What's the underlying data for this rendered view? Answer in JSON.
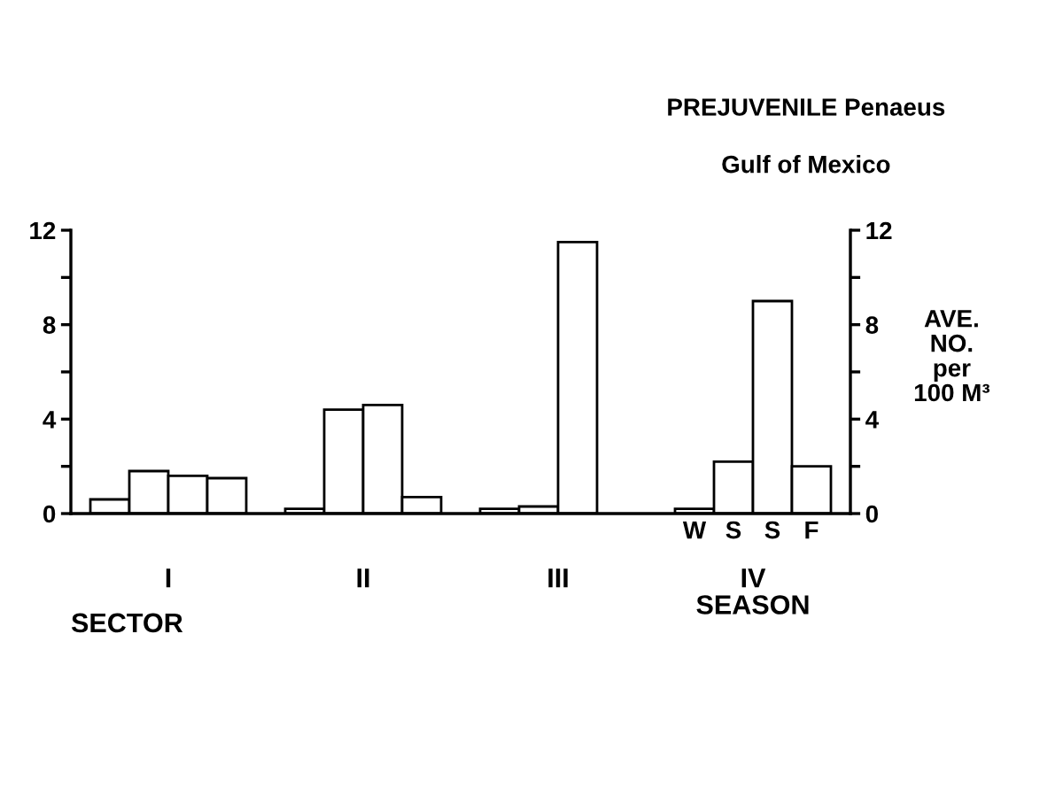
{
  "chart_data": {
    "type": "bar",
    "title": "PREJUVENILE Penaeus",
    "subtitle": "Gulf of Mexico",
    "xlabel": "SECTOR",
    "y2label": "AVE.\nNO.\nper\n100 M³",
    "categories": [
      "I",
      "II",
      "III",
      "IV"
    ],
    "series": [
      {
        "name": "W",
        "color": "#ffffff",
        "values": [
          0.6,
          0.2,
          0.2,
          0.2
        ]
      },
      {
        "name": "S",
        "color": "#ffffff",
        "values": [
          1.8,
          4.4,
          0.3,
          2.2
        ]
      },
      {
        "name": "S",
        "color": "#ffffff",
        "values": [
          1.6,
          4.6,
          11.5,
          9.0
        ]
      },
      {
        "name": "F",
        "color": "#ffffff",
        "values": [
          1.5,
          0.7,
          null,
          2.0
        ]
      }
    ],
    "ylim": [
      0,
      12
    ],
    "yticks": [
      0,
      {
        "value": 2,
        "label": null
      },
      4,
      {
        "value": 6,
        "label": null
      },
      8,
      {
        "value": 10,
        "label": null
      },
      12
    ],
    "y2lim": [
      0,
      12
    ],
    "y2ticks": [
      0,
      {
        "value": 2,
        "label": null
      },
      4,
      {
        "value": 6,
        "label": null
      },
      8,
      {
        "value": 10,
        "label": null
      },
      12
    ],
    "annotations": [
      "SEASON"
    ]
  }
}
